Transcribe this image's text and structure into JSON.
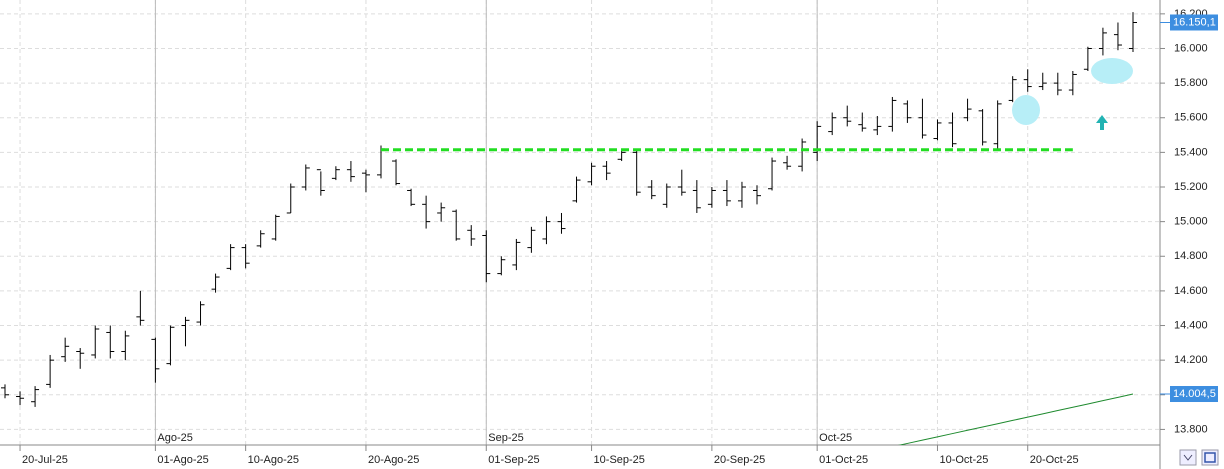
{
  "chart_data": {
    "type": "ohlc",
    "categories": [
      null,
      "20-Jul-25",
      null,
      null,
      null,
      null,
      null,
      null,
      null,
      null,
      "01-Ago-25",
      null,
      null,
      null,
      null,
      null,
      "10-Ago-25",
      null,
      null,
      null,
      null,
      null,
      null,
      null,
      "20-Ago-25",
      null,
      null,
      null,
      null,
      null,
      null,
      null,
      "01-Sep-25",
      null,
      null,
      null,
      null,
      null,
      null,
      "10-Sep-25",
      null,
      null,
      null,
      null,
      null,
      null,
      null,
      "20-Sep-25",
      null,
      null,
      null,
      null,
      null,
      null,
      "01-Oct-25",
      null,
      null,
      null,
      null,
      null,
      null,
      null,
      "10-Oct-25",
      null,
      null,
      null,
      null,
      null,
      "20-Oct-25",
      null,
      null,
      null,
      null,
      null,
      null,
      null
    ],
    "month_labels": [
      {
        "value": 10,
        "label": "Ago-25"
      },
      {
        "value": 32,
        "label": "Sep-25"
      },
      {
        "value": 54,
        "label": "Oct-25"
      }
    ],
    "open": [
      14040,
      13990,
      13960,
      14060,
      14220,
      14250,
      14230,
      14360,
      14250,
      14450,
      14320,
      14180,
      14400,
      14420,
      14610,
      14730,
      14850,
      14860,
      14900,
      15050,
      15200,
      15300,
      15250,
      15300,
      15280,
      15270,
      15350,
      15180,
      15100,
      15050,
      15060,
      14950,
      14920,
      14700,
      14750,
      14850,
      14900,
      15000,
      15120,
      15230,
      15320,
      15360,
      15400,
      15200,
      15100,
      15200,
      15180,
      15100,
      15180,
      15120,
      15180,
      15190,
      15340,
      15320,
      15400,
      15520,
      15600,
      15560,
      15530,
      15550,
      15680,
      15600,
      15480,
      15570,
      15600,
      15640,
      15450,
      15700,
      15820,
      15780,
      15800,
      15760,
      15880,
      16000,
      16080,
      16000
    ],
    "high": [
      14060,
      14020,
      14050,
      14230,
      14330,
      14270,
      14400,
      14400,
      14370,
      14600,
      14330,
      14400,
      14450,
      14540,
      14700,
      14870,
      14870,
      14950,
      15040,
      15220,
      15330,
      15290,
      15320,
      15350,
      15300,
      15440,
      15360,
      15190,
      15150,
      15110,
      15070,
      14980,
      14950,
      14800,
      14900,
      14970,
      15030,
      15050,
      15260,
      15340,
      15350,
      15420,
      15420,
      15240,
      15220,
      15300,
      15240,
      15200,
      15240,
      15230,
      15210,
      15370,
      15380,
      15480,
      15580,
      15630,
      15670,
      15630,
      15610,
      15720,
      15700,
      15710,
      15590,
      15630,
      15710,
      15650,
      15700,
      15840,
      15880,
      15860,
      15860,
      15870,
      16010,
      16120,
      16150,
      16210
    ],
    "low": [
      13980,
      13940,
      13930,
      14040,
      14190,
      14150,
      14210,
      14210,
      14200,
      14400,
      14070,
      14170,
      14280,
      14400,
      14590,
      14720,
      14730,
      14850,
      14890,
      15050,
      15180,
      15150,
      15240,
      15230,
      15170,
      15250,
      15210,
      15090,
      14960,
      15000,
      14890,
      14860,
      14650,
      14690,
      14720,
      14820,
      14870,
      14930,
      15110,
      15210,
      15240,
      15350,
      15150,
      15130,
      15080,
      15150,
      15050,
      15080,
      15090,
      15080,
      15100,
      15180,
      15300,
      15290,
      15350,
      15500,
      15550,
      15520,
      15500,
      15520,
      15570,
      15480,
      15470,
      15430,
      15580,
      15440,
      15410,
      15690,
      15750,
      15760,
      15730,
      15730,
      15870,
      15960,
      15990,
      15980
    ],
    "close": [
      14000,
      13980,
      14030,
      14200,
      14280,
      14240,
      14380,
      14250,
      14340,
      14430,
      14150,
      14390,
      14430,
      14520,
      14680,
      14850,
      14760,
      14930,
      15030,
      15200,
      15310,
      15180,
      15300,
      15260,
      15270,
      15420,
      15220,
      15100,
      15000,
      15080,
      14900,
      14900,
      14700,
      14780,
      14880,
      14950,
      15000,
      14960,
      15240,
      15320,
      15280,
      15400,
      15170,
      15150,
      15200,
      15170,
      15080,
      15180,
      15120,
      15200,
      15150,
      15350,
      15320,
      15460,
      15550,
      15600,
      15580,
      15540,
      15550,
      15700,
      15600,
      15500,
      15570,
      15450,
      15650,
      15460,
      15680,
      15820,
      15780,
      15800,
      15760,
      15850,
      16000,
      16090,
      16020,
      16150.1
    ],
    "color": "#000000",
    "overlay": {
      "color": "#1e8a2e",
      "values": [
        null,
        null,
        null,
        null,
        null,
        null,
        null,
        null,
        null,
        null,
        null,
        null,
        null,
        null,
        null,
        null,
        null,
        null,
        null,
        null,
        null,
        null,
        null,
        null,
        null,
        null,
        null,
        null,
        null,
        null,
        null,
        null,
        null,
        null,
        null,
        null,
        null,
        null,
        null,
        null,
        null,
        null,
        null,
        null,
        null,
        null,
        null,
        null,
        null,
        null,
        null,
        null,
        null,
        null,
        null,
        null,
        null,
        null,
        null,
        13700,
        13719,
        13738,
        13757,
        13776,
        13795,
        13814,
        13833,
        13852,
        13871,
        13890,
        13909,
        13928,
        13947,
        13966,
        13985,
        14004.5
      ]
    },
    "hline": {
      "value": 15415,
      "start": 25,
      "end": 71,
      "color": "#22dd22"
    },
    "price_tags": [
      {
        "value": 16150.1,
        "label": "16.150,1"
      },
      {
        "value": 14004.5,
        "label": "14.004,5"
      }
    ],
    "ylim": [
      13710,
      16280
    ],
    "yticks": [
      {
        "value": 13800,
        "label": "13.800"
      },
      {
        "value": 14000,
        "label": "14.000"
      },
      {
        "value": 14200,
        "label": "14.200"
      },
      {
        "value": 14400,
        "label": "14.400"
      },
      {
        "value": 14600,
        "label": "14.600"
      },
      {
        "value": 14800,
        "label": "14.800"
      },
      {
        "value": 15000,
        "label": "15.000"
      },
      {
        "value": 15200,
        "label": "15.200"
      },
      {
        "value": 15400,
        "label": "15.400"
      },
      {
        "value": 15600,
        "label": "15.600"
      },
      {
        "value": 15800,
        "label": "15.800"
      },
      {
        "value": 16000,
        "label": "16.000"
      },
      {
        "value": 16200,
        "label": "16.200"
      }
    ],
    "grid": true
  }
}
